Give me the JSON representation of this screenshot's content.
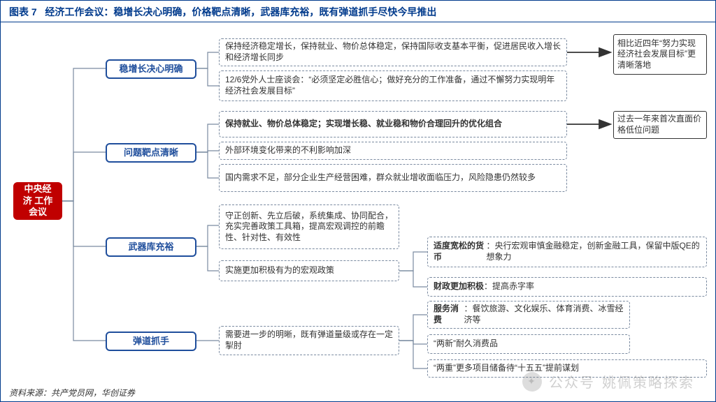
{
  "header": {
    "prefix": "图表 7",
    "title": "经济工作会议：稳增长决心明确，价格靶点清晰，武器库充裕，既有弹道抓手尽快今早推出"
  },
  "source": "资料来源：共产党员网，华创证券",
  "watermark": {
    "label": "公众号",
    "name": "姚佩策略探索"
  },
  "colors": {
    "frame": "#003a8c",
    "root_bg": "#c00000",
    "branch_border": "#1f4e9c",
    "leaf_border": "#7a8aa0",
    "callout_border": "#333333"
  },
  "root": {
    "label": "中央经济\n工作会议"
  },
  "branches": [
    {
      "id": "b1",
      "label": "稳增长决心明确",
      "leaves": [
        {
          "text": "保持经济稳定增长，保持就业、物价总体稳定，保持国际收支基本平衡，促进居民收入增长和经济增长同步"
        },
        {
          "text": "12/6党外人士座谈会：“必须坚定必胜信心；做好充分的工作准备，通过不懈努力实现明年经济社会发展目标”"
        }
      ],
      "callout": "相比近四年“努力实现经济社会发展目标”更清晰落地"
    },
    {
      "id": "b2",
      "label": "问题靶点清晰",
      "leaves": [
        {
          "text_bold": "保持就业、物价总体稳定；实现增长稳、就业稳和物价合理回升的优化组合"
        },
        {
          "text": "外部环境变化带来的不利影响加深"
        },
        {
          "text": "国内需求不足，部分企业生产经营困难，群众就业增收面临压力，风险隐患仍然较多"
        }
      ],
      "callout": "过去一年来首次直面价格低位问题"
    },
    {
      "id": "b3",
      "label": "武器库充裕",
      "leaves": [
        {
          "text": "守正创新、先立后破，系统集成、协同配合，充实完善政策工具箱，提高宏观调控的前瞻性、针对性、有效性"
        },
        {
          "text": "实施更加积极有为的宏观政策"
        }
      ],
      "sub_callouts": [
        {
          "text_html": "<b>适度宽松的货币</b>：央行宏观审慎金融稳定，创新金融工具，保留中版QE的想象力"
        },
        {
          "text_html": "<b>财政更加积极</b>：提高赤字率"
        }
      ]
    },
    {
      "id": "b4",
      "label": "弹道抓手",
      "leaves": [
        {
          "text": "需要进一步的明晰，既有弹道量级或存在一定掣肘"
        }
      ],
      "sub_callouts": [
        {
          "text_html": "<b>服务消费</b>：餐饮旅游、文化娱乐、体育消费、冰雪经济等"
        },
        {
          "text_html": "“两新”耐久消费品"
        },
        {
          "text_html": "“两重”更多项目储备待“十五五”提前谋划"
        }
      ]
    }
  ]
}
